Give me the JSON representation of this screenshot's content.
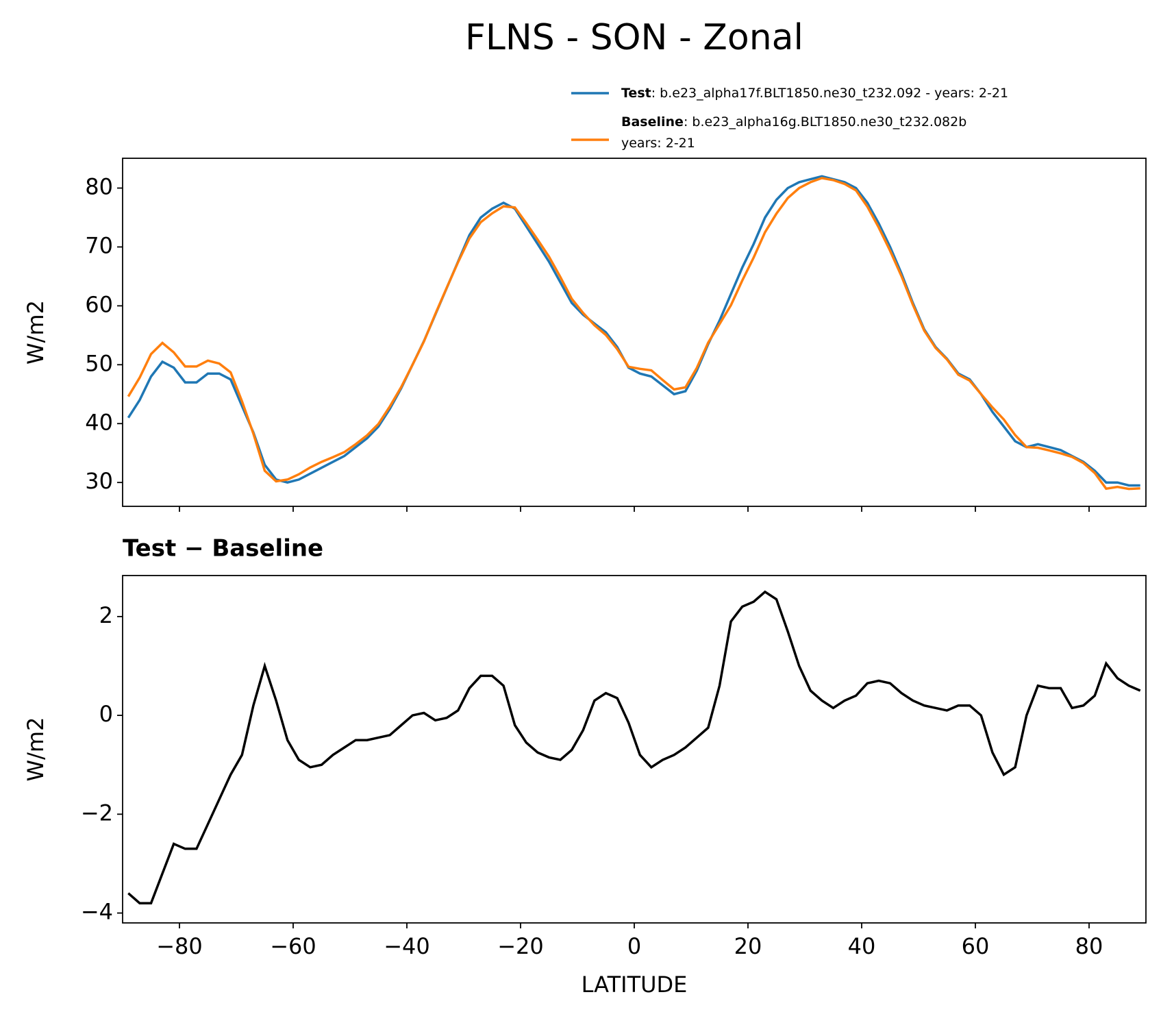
{
  "chart_data": [
    {
      "type": "line",
      "title": "FLNS - SON - Zonal",
      "ylabel": "W/m2",
      "x": [
        -89,
        -87,
        -85,
        -83,
        -81,
        -79,
        -77,
        -75,
        -73,
        -71,
        -69,
        -67,
        -65,
        -63,
        -61,
        -59,
        -57,
        -55,
        -53,
        -51,
        -49,
        -47,
        -45,
        -43,
        -41,
        -39,
        -37,
        -35,
        -33,
        -31,
        -29,
        -27,
        -25,
        -23,
        -21,
        -19,
        -17,
        -15,
        -13,
        -11,
        -9,
        -7,
        -5,
        -3,
        -1,
        1,
        3,
        5,
        7,
        9,
        11,
        13,
        15,
        17,
        19,
        21,
        23,
        25,
        27,
        29,
        31,
        33,
        35,
        37,
        39,
        41,
        43,
        45,
        47,
        49,
        51,
        53,
        55,
        57,
        59,
        61,
        63,
        65,
        67,
        69,
        71,
        73,
        75,
        77,
        79,
        81,
        83,
        85,
        87,
        89
      ],
      "series": [
        {
          "name": "Test",
          "description": [
            ": b.e23_alpha17f.BLT1850.ne30_t232.092 - years: 2-21"
          ],
          "color": "#1f77b4",
          "values": [
            41,
            44,
            48,
            50.5,
            49.5,
            47,
            47,
            48.5,
            48.5,
            47.5,
            43,
            38.5,
            33,
            30.5,
            30,
            30.5,
            31.5,
            32.5,
            33.5,
            34.5,
            36,
            37.5,
            39.5,
            42.5,
            46,
            50,
            54,
            58.5,
            63,
            67.5,
            72,
            75,
            76.5,
            77.5,
            76.5,
            73.5,
            70.5,
            67.5,
            64,
            60.5,
            58.5,
            57,
            55.5,
            53,
            49.5,
            48.5,
            48,
            46.5,
            45,
            45.5,
            49,
            53.5,
            57.5,
            62,
            66.5,
            70.5,
            75,
            78,
            80,
            81,
            81.5,
            82,
            81.5,
            81,
            80,
            77.5,
            74,
            70,
            65.5,
            60.5,
            56,
            53,
            51,
            48.5,
            47.5,
            45,
            42,
            39.5,
            37,
            36,
            36.5,
            36,
            35.5,
            34.5,
            33.5,
            32,
            30,
            30,
            29.5,
            29.5
          ]
        },
        {
          "name": "Baseline",
          "description": [
            ": b.e23_alpha16g.BLT1850.ne30_t232.082b",
            "years: 2-21"
          ],
          "color": "#ff7f0e",
          "values": [
            44.6,
            47.8,
            51.8,
            53.7,
            52.1,
            49.7,
            49.7,
            50.7,
            50.2,
            48.7,
            43.8,
            38.3,
            32,
            30.2,
            30.5,
            31.4,
            32.55,
            33.5,
            34.3,
            35.15,
            36.5,
            38,
            39.95,
            42.9,
            46.2,
            50,
            53.95,
            58.6,
            63.05,
            67.4,
            71.45,
            74.2,
            75.7,
            76.9,
            76.7,
            74.05,
            71.25,
            68.35,
            64.9,
            61.2,
            58.8,
            56.7,
            55.05,
            52.65,
            49.65,
            49.3,
            49.05,
            47.4,
            45.8,
            46.15,
            49.45,
            53.75,
            56.9,
            60.1,
            64.3,
            68.2,
            72.5,
            75.65,
            78.3,
            80,
            81,
            81.7,
            81.35,
            80.7,
            79.6,
            76.85,
            73.3,
            69.35,
            65.05,
            60.2,
            55.8,
            52.85,
            50.9,
            48.3,
            47.3,
            45,
            42.75,
            40.7,
            38.05,
            36,
            35.9,
            35.45,
            34.95,
            34.35,
            33.3,
            31.6,
            28.95,
            29.25,
            28.9,
            29
          ]
        }
      ],
      "xlim": [
        -90,
        90
      ],
      "xticks": [
        -80,
        -60,
        -40,
        -20,
        0,
        20,
        40,
        60,
        80
      ],
      "show_xticklabels": false,
      "ylim": [
        25.95,
        85.06
      ],
      "yticks": [
        30,
        40,
        50,
        60,
        70,
        80
      ]
    },
    {
      "type": "line",
      "title": "Test − Baseline",
      "ylabel": "W/m2",
      "xlabel": "LATITUDE",
      "x": [
        -89,
        -87,
        -85,
        -83,
        -81,
        -79,
        -77,
        -75,
        -73,
        -71,
        -69,
        -67,
        -65,
        -63,
        -61,
        -59,
        -57,
        -55,
        -53,
        -51,
        -49,
        -47,
        -45,
        -43,
        -41,
        -39,
        -37,
        -35,
        -33,
        -31,
        -29,
        -27,
        -25,
        -23,
        -21,
        -19,
        -17,
        -15,
        -13,
        -11,
        -9,
        -7,
        -5,
        -3,
        -1,
        1,
        3,
        5,
        7,
        9,
        11,
        13,
        15,
        17,
        19,
        21,
        23,
        25,
        27,
        29,
        31,
        33,
        35,
        37,
        39,
        41,
        43,
        45,
        47,
        49,
        51,
        53,
        55,
        57,
        59,
        61,
        63,
        65,
        67,
        69,
        71,
        73,
        75,
        77,
        79,
        81,
        83,
        85,
        87,
        89
      ],
      "series": [
        {
          "color": "#000000",
          "values": [
            -3.6,
            -3.8,
            -3.8,
            -3.2,
            -2.6,
            -2.7,
            -2.7,
            -2.2,
            -1.7,
            -1.2,
            -0.8,
            0.2,
            1.0,
            0.3,
            -0.5,
            -0.9,
            -1.05,
            -1.0,
            -0.8,
            -0.65,
            -0.5,
            -0.5,
            -0.45,
            -0.4,
            -0.2,
            0.0,
            0.05,
            -0.1,
            -0.05,
            0.1,
            0.55,
            0.8,
            0.8,
            0.6,
            -0.2,
            -0.55,
            -0.75,
            -0.85,
            -0.9,
            -0.7,
            -0.3,
            0.3,
            0.45,
            0.35,
            -0.15,
            -0.8,
            -1.05,
            -0.9,
            -0.8,
            -0.65,
            -0.45,
            -0.25,
            0.6,
            1.9,
            2.2,
            2.3,
            2.5,
            2.35,
            1.7,
            1.0,
            0.5,
            0.3,
            0.15,
            0.3,
            0.4,
            0.65,
            0.7,
            0.65,
            0.45,
            0.3,
            0.2,
            0.15,
            0.1,
            0.2,
            0.2,
            0.0,
            -0.75,
            -1.2,
            -1.05,
            0.0,
            0.6,
            0.55,
            0.55,
            0.15,
            0.2,
            0.4,
            1.05,
            0.75,
            0.6,
            0.5
          ]
        }
      ],
      "xlim": [
        -90,
        90
      ],
      "xticks": [
        {
          "value": -80,
          "label": "−80"
        },
        {
          "value": -60,
          "label": "−60"
        },
        {
          "value": -40,
          "label": "−40"
        },
        {
          "value": -20,
          "label": "−20"
        },
        0,
        20,
        40,
        60,
        80
      ],
      "show_xticklabels": true,
      "ylim": [
        -4.2,
        2.83
      ],
      "yticks": [
        {
          "value": -4,
          "label": "−4"
        },
        {
          "value": -2,
          "label": "−2"
        },
        0,
        2
      ]
    }
  ]
}
